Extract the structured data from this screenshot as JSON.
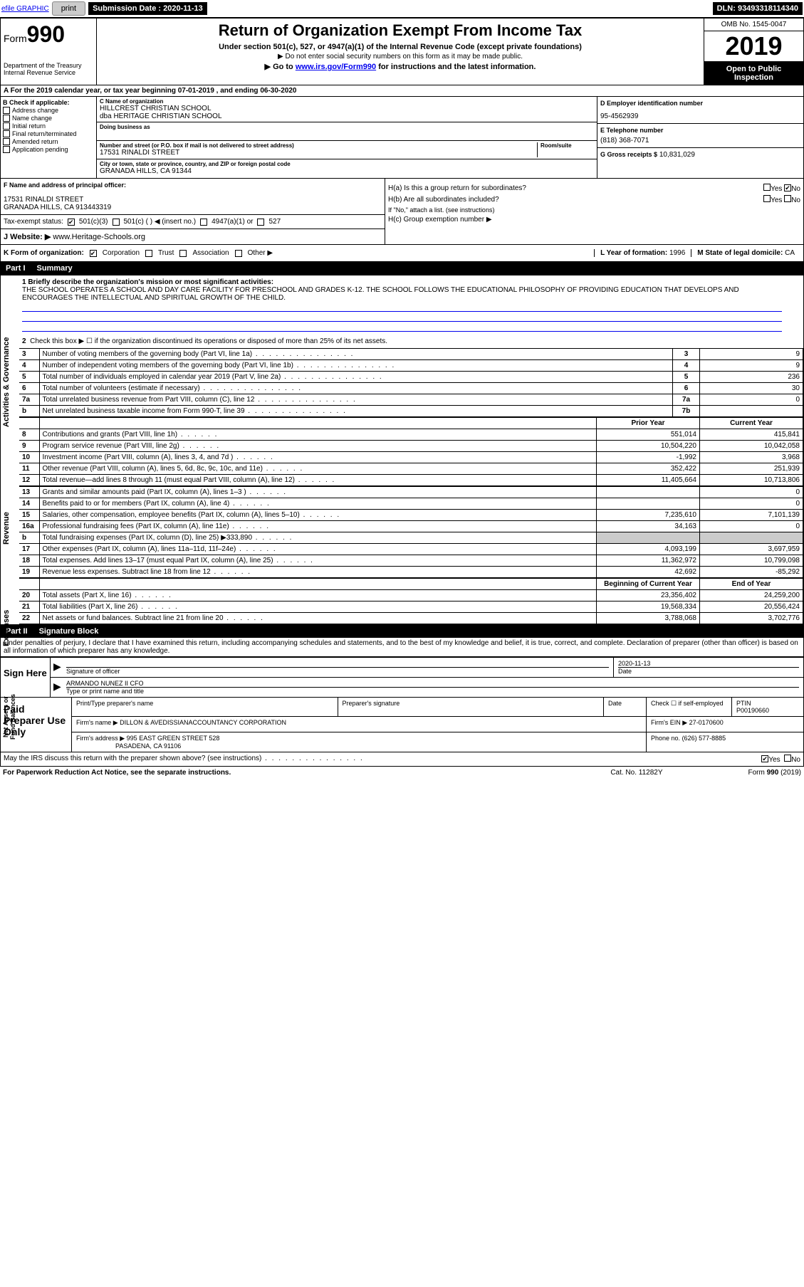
{
  "topbar": {
    "efile": "efile GRAPHIC",
    "print": "print",
    "sub_label": "Submission Date : 2020-11-13",
    "dln": "DLN: 93493318114340"
  },
  "header": {
    "form": "Form",
    "num": "990",
    "dept": "Department of the Treasury Internal Revenue Service",
    "title": "Return of Organization Exempt From Income Tax",
    "sub1": "Under section 501(c), 527, or 4947(a)(1) of the Internal Revenue Code (except private foundations)",
    "sub2": "▶ Do not enter social security numbers on this form as it may be made public.",
    "sub3_pre": "▶ Go to ",
    "sub3_link": "www.irs.gov/Form990",
    "sub3_post": " for instructions and the latest information.",
    "omb": "OMB No. 1545-0047",
    "year": "2019",
    "open": "Open to Public Inspection"
  },
  "yearline": "A For the 2019 calendar year, or tax year beginning 07-01-2019    , and ending 06-30-2020",
  "b": {
    "title": "B Check if applicable:",
    "opts": [
      "Address change",
      "Name change",
      "Initial return",
      "Final return/terminated",
      "Amended return",
      "Application pending"
    ]
  },
  "c": {
    "name_label": "C Name of organization",
    "name": "HILLCREST CHRISTIAN SCHOOL",
    "dba": "dba HERITAGE CHRISTIAN SCHOOL",
    "dba_label": "Doing business as",
    "addr_label": "Number and street (or P.O. box if mail is not delivered to street address)",
    "room_label": "Room/suite",
    "addr": "17531 RINALDI STREET",
    "city_label": "City or town, state or province, country, and ZIP or foreign postal code",
    "city": "GRANADA HILLS, CA  91344"
  },
  "d": {
    "label": "D Employer identification number",
    "val": "95-4562939"
  },
  "e": {
    "label": "E Telephone number",
    "val": "(818) 368-7071"
  },
  "g": {
    "label": "G Gross receipts $",
    "val": "10,831,029"
  },
  "f": {
    "label": "F  Name and address of principal officer:",
    "addr1": "17531 RINALDI STREET",
    "addr2": "GRANADA HILLS, CA  913443319"
  },
  "h": {
    "a": "H(a)  Is this a group return for subordinates?",
    "b": "H(b)  Are all subordinates included?",
    "bnote": "If \"No,\" attach a list. (see instructions)",
    "c": "H(c)  Group exemption number ▶",
    "yes": "Yes",
    "no": "No"
  },
  "tax": {
    "label": "Tax-exempt status:",
    "c3": "501(c)(3)",
    "c": "501(c) (  ) ◀ (insert no.)",
    "a1": "4947(a)(1) or",
    "s527": "527"
  },
  "j": {
    "label": "J  Website: ▶",
    "val": "www.Heritage-Schools.org"
  },
  "k": {
    "label": "K Form of organization:",
    "corp": "Corporation",
    "trust": "Trust",
    "assoc": "Association",
    "other": "Other ▶",
    "l_label": "L Year of formation:",
    "l_val": "1996",
    "m_label": "M State of legal domicile:",
    "m_val": "CA"
  },
  "part1": {
    "num": "Part I",
    "title": "Summary",
    "q1": "1  Briefly describe the organization's mission or most significant activities:",
    "mission": "THE SCHOOL OPERATES A SCHOOL AND DAY CARE FACILITY FOR PRESCHOOL AND GRADES K-12. THE SCHOOL FOLLOWS THE EDUCATIONAL PHILOSOPHY OF PROVIDING EDUCATION THAT DEVELOPS AND ENCOURAGES THE INTELLECTUAL AND SPIRITUAL GROWTH OF THE CHILD.",
    "q2": "Check this box ▶ ☐  if the organization discontinued its operations or disposed of more than 25% of its net assets.",
    "side_ag": "Activities & Governance",
    "side_rev": "Revenue",
    "side_exp": "Expenses",
    "side_net": "Net Assets or Fund Balances",
    "rows_ag": [
      {
        "n": "3",
        "d": "Number of voting members of the governing body (Part VI, line 1a)",
        "b": "3",
        "v": "9"
      },
      {
        "n": "4",
        "d": "Number of independent voting members of the governing body (Part VI, line 1b)",
        "b": "4",
        "v": "9"
      },
      {
        "n": "5",
        "d": "Total number of individuals employed in calendar year 2019 (Part V, line 2a)",
        "b": "5",
        "v": "236"
      },
      {
        "n": "6",
        "d": "Total number of volunteers (estimate if necessary)",
        "b": "6",
        "v": "30"
      },
      {
        "n": "7a",
        "d": "Total unrelated business revenue from Part VIII, column (C), line 12",
        "b": "7a",
        "v": "0"
      },
      {
        "n": "b",
        "d": "Net unrelated business taxable income from Form 990-T, line 39",
        "b": "7b",
        "v": ""
      }
    ],
    "hdr_prior": "Prior Year",
    "hdr_curr": "Current Year",
    "rows_rev": [
      {
        "n": "8",
        "d": "Contributions and grants (Part VIII, line 1h)",
        "p": "551,014",
        "c": "415,841"
      },
      {
        "n": "9",
        "d": "Program service revenue (Part VIII, line 2g)",
        "p": "10,504,220",
        "c": "10,042,058"
      },
      {
        "n": "10",
        "d": "Investment income (Part VIII, column (A), lines 3, 4, and 7d )",
        "p": "-1,992",
        "c": "3,968"
      },
      {
        "n": "11",
        "d": "Other revenue (Part VIII, column (A), lines 5, 6d, 8c, 9c, 10c, and 11e)",
        "p": "352,422",
        "c": "251,939"
      },
      {
        "n": "12",
        "d": "Total revenue—add lines 8 through 11 (must equal Part VIII, column (A), line 12)",
        "p": "11,405,664",
        "c": "10,713,806"
      }
    ],
    "rows_exp": [
      {
        "n": "13",
        "d": "Grants and similar amounts paid (Part IX, column (A), lines 1–3 )",
        "p": "",
        "c": "0"
      },
      {
        "n": "14",
        "d": "Benefits paid to or for members (Part IX, column (A), line 4)",
        "p": "",
        "c": "0"
      },
      {
        "n": "15",
        "d": "Salaries, other compensation, employee benefits (Part IX, column (A), lines 5–10)",
        "p": "7,235,610",
        "c": "7,101,139"
      },
      {
        "n": "16a",
        "d": "Professional fundraising fees (Part IX, column (A), line 11e)",
        "p": "34,163",
        "c": "0"
      },
      {
        "n": "b",
        "d": "Total fundraising expenses (Part IX, column (D), line 25) ▶333,890",
        "p": "",
        "c": "",
        "shade": true
      },
      {
        "n": "17",
        "d": "Other expenses (Part IX, column (A), lines 11a–11d, 11f–24e)",
        "p": "4,093,199",
        "c": "3,697,959"
      },
      {
        "n": "18",
        "d": "Total expenses. Add lines 13–17 (must equal Part IX, column (A), line 25)",
        "p": "11,362,972",
        "c": "10,799,098"
      },
      {
        "n": "19",
        "d": "Revenue less expenses. Subtract line 18 from line 12",
        "p": "42,692",
        "c": "-85,292"
      }
    ],
    "hdr_beg": "Beginning of Current Year",
    "hdr_end": "End of Year",
    "rows_net": [
      {
        "n": "20",
        "d": "Total assets (Part X, line 16)",
        "p": "23,356,402",
        "c": "24,259,200"
      },
      {
        "n": "21",
        "d": "Total liabilities (Part X, line 26)",
        "p": "19,568,334",
        "c": "20,556,424"
      },
      {
        "n": "22",
        "d": "Net assets or fund balances. Subtract line 21 from line 20",
        "p": "3,788,068",
        "c": "3,702,776"
      }
    ]
  },
  "part2": {
    "num": "Part II",
    "title": "Signature Block",
    "decl": "Under penalties of perjury, I declare that I have examined this return, including accompanying schedules and statements, and to the best of my knowledge and belief, it is true, correct, and complete. Declaration of preparer (other than officer) is based on all information of which preparer has any knowledge."
  },
  "sign": {
    "label": "Sign Here",
    "sig_label": "Signature of officer",
    "date_label": "Date",
    "date": "2020-11-13",
    "name": "ARMANDO NUNEZ II CFO",
    "name_label": "Type or print name and title"
  },
  "paid": {
    "label": "Paid Preparer Use Only",
    "col1": "Print/Type preparer's name",
    "col2": "Preparer's signature",
    "col3": "Date",
    "col4a": "Check ☐ if self-employed",
    "col5a": "PTIN",
    "col5b": "P00190660",
    "firm_label": "Firm's name    ▶",
    "firm": "DILLON & AVEDISSIANACCOUNTANCY CORPORATION",
    "ein_label": "Firm's EIN ▶",
    "ein": "27-0170600",
    "addr_label": "Firm's address ▶",
    "addr1": "995 EAST GREEN STREET 528",
    "addr2": "PASADENA, CA  91106",
    "phone_label": "Phone no.",
    "phone": "(626) 577-8885",
    "discuss": "May the IRS discuss this return with the preparer shown above? (see instructions)",
    "yes": "Yes",
    "no": "No"
  },
  "footer": {
    "left": "For Paperwork Reduction Act Notice, see the separate instructions.",
    "mid": "Cat. No. 11282Y",
    "right": "Form 990 (2019)"
  }
}
